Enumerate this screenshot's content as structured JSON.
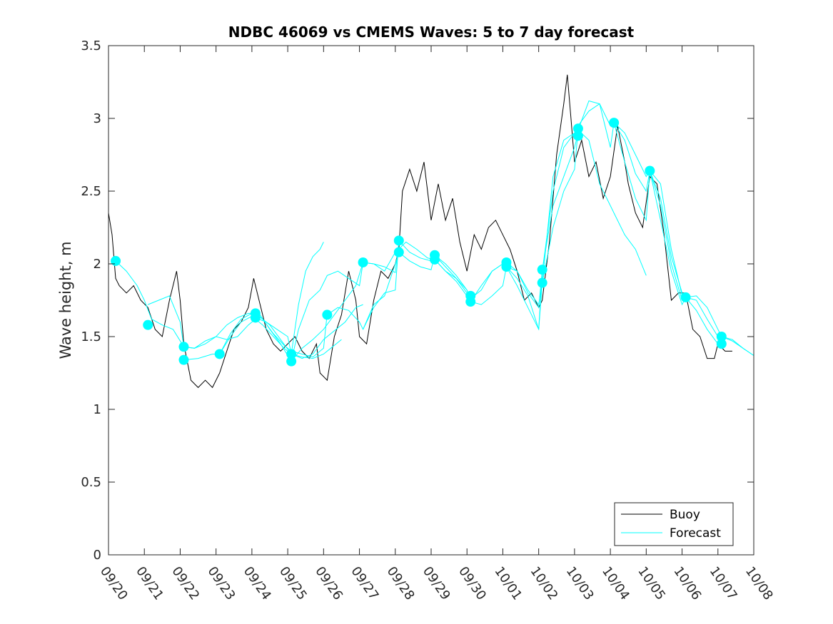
{
  "chart_data": {
    "type": "line",
    "title": "NDBC 46069 vs CMEMS Waves: 5 to 7 day forecast",
    "xlabel": "",
    "ylabel": "Wave height, m",
    "xlim": [
      0,
      18
    ],
    "ylim": [
      0,
      3.5
    ],
    "x_tick_labels": [
      "09/20",
      "09/21",
      "09/22",
      "09/23",
      "09/24",
      "09/25",
      "09/26",
      "09/27",
      "09/28",
      "09/29",
      "09/30",
      "10/01",
      "10/02",
      "10/03",
      "10/04",
      "10/05",
      "10/06",
      "10/07",
      "10/08"
    ],
    "y_ticks": [
      0,
      0.5,
      1,
      1.5,
      2,
      2.5,
      3,
      3.5
    ],
    "y_tick_labels": [
      "0",
      "0.5",
      "1",
      "1.5",
      "2",
      "2.5",
      "3",
      "3.5"
    ],
    "legend": {
      "position": "bottom-right",
      "entries": [
        "Buoy",
        "Forecast"
      ]
    },
    "colors": {
      "buoy": "#000000",
      "forecast": "#00ffff",
      "axes": "#262626"
    },
    "buoy": {
      "name": "Buoy",
      "x": [
        0,
        0.1,
        0.2,
        0.3,
        0.5,
        0.7,
        0.9,
        1.1,
        1.3,
        1.5,
        1.7,
        1.9,
        2.0,
        2.1,
        2.3,
        2.5,
        2.7,
        2.9,
        3.1,
        3.3,
        3.5,
        3.7,
        3.9,
        4.05,
        4.2,
        4.4,
        4.6,
        4.8,
        5.0,
        5.2,
        5.4,
        5.6,
        5.8,
        5.9,
        6.1,
        6.3,
        6.5,
        6.7,
        6.9,
        7.0,
        7.2,
        7.4,
        7.6,
        7.8,
        8.0,
        8.1,
        8.2,
        8.4,
        8.6,
        8.8,
        9.0,
        9.2,
        9.4,
        9.6,
        9.8,
        10.0,
        10.2,
        10.4,
        10.6,
        10.8,
        11.0,
        11.2,
        11.4,
        11.6,
        11.8,
        12.0,
        12.1,
        12.3,
        12.5,
        12.7,
        12.8,
        12.9,
        13.0,
        13.2,
        13.4,
        13.6,
        13.8,
        14.0,
        14.2,
        14.4,
        14.5,
        14.7,
        14.9,
        15.1,
        15.3,
        15.5,
        15.7,
        15.9,
        16.1,
        16.3,
        16.5,
        16.7,
        16.9,
        17.0,
        17.2,
        17.4
      ],
      "y": [
        2.35,
        2.2,
        1.9,
        1.85,
        1.8,
        1.85,
        1.75,
        1.7,
        1.55,
        1.5,
        1.75,
        1.95,
        1.75,
        1.45,
        1.2,
        1.15,
        1.2,
        1.15,
        1.25,
        1.4,
        1.55,
        1.6,
        1.7,
        1.9,
        1.75,
        1.55,
        1.45,
        1.4,
        1.45,
        1.5,
        1.4,
        1.35,
        1.45,
        1.25,
        1.2,
        1.5,
        1.65,
        1.95,
        1.75,
        1.5,
        1.45,
        1.75,
        1.95,
        1.9,
        2.0,
        2.1,
        2.5,
        2.65,
        2.5,
        2.7,
        2.3,
        2.55,
        2.3,
        2.45,
        2.15,
        1.95,
        2.2,
        2.1,
        2.25,
        2.3,
        2.2,
        2.1,
        1.95,
        1.75,
        1.8,
        1.7,
        1.75,
        2.15,
        2.75,
        3.1,
        3.3,
        3.0,
        2.7,
        2.85,
        2.6,
        2.7,
        2.45,
        2.6,
        2.95,
        2.7,
        2.55,
        2.35,
        2.25,
        2.6,
        2.55,
        2.2,
        1.75,
        1.8,
        1.8,
        1.55,
        1.5,
        1.35,
        1.35,
        1.45,
        1.4,
        1.4
      ]
    },
    "forecast_series": [
      {
        "x": [
          0.2,
          0.5,
          0.8,
          1.0,
          1.2,
          1.5,
          1.8,
          2.1,
          2.4,
          2.7,
          3.0,
          3.3,
          3.6,
          3.9,
          4.1,
          4.3,
          4.6,
          4.9,
          5.1,
          5.4,
          5.7,
          6.0,
          6.2,
          6.5
        ],
        "y": [
          2.02,
          1.95,
          1.85,
          1.75,
          1.62,
          1.58,
          1.55,
          1.43,
          1.42,
          1.45,
          1.5,
          1.48,
          1.5,
          1.58,
          1.62,
          1.58,
          1.5,
          1.42,
          1.38,
          1.36,
          1.35,
          1.38,
          1.42,
          1.48
        ]
      },
      {
        "x": [
          1.1,
          1.4,
          1.7,
          2.0,
          2.1,
          2.4,
          2.7,
          3.0,
          3.3,
          3.6,
          3.9,
          4.1,
          4.3,
          4.6,
          4.9,
          5.1,
          5.4,
          5.7,
          6.0,
          6.1
        ],
        "y": [
          1.72,
          1.75,
          1.78,
          1.6,
          1.43,
          1.42,
          1.47,
          1.5,
          1.58,
          1.63,
          1.66,
          1.66,
          1.62,
          1.52,
          1.44,
          1.4,
          1.38,
          1.36,
          1.42,
          1.66
        ]
      },
      {
        "x": [
          2.1,
          2.5,
          2.9,
          3.1,
          3.4,
          3.7,
          4.0,
          4.2,
          4.5,
          4.8,
          5.1,
          5.4,
          5.7,
          6.0,
          6.3,
          6.6,
          6.9,
          7.1
        ],
        "y": [
          1.34,
          1.35,
          1.38,
          1.38,
          1.5,
          1.6,
          1.64,
          1.64,
          1.58,
          1.48,
          1.38,
          1.35,
          1.38,
          1.48,
          1.54,
          1.6,
          1.7,
          1.72
        ]
      },
      {
        "x": [
          3.1,
          3.4,
          3.7,
          4.0,
          4.2,
          4.5,
          4.8,
          5.1,
          5.4,
          5.7,
          6.0,
          6.3,
          6.6,
          6.9,
          7.1,
          7.4,
          7.7,
          8.0,
          8.1
        ],
        "y": [
          1.38,
          1.52,
          1.62,
          1.66,
          1.66,
          1.55,
          1.45,
          1.33,
          1.42,
          1.48,
          1.55,
          1.65,
          1.75,
          1.85,
          2.01,
          2.0,
          1.98,
          1.94,
          2.15
        ]
      },
      {
        "x": [
          4.1,
          4.4,
          4.7,
          5.0,
          5.1,
          5.3,
          5.5,
          5.7,
          5.9,
          6.0
        ],
        "y": [
          1.63,
          1.6,
          1.55,
          1.5,
          1.38,
          1.72,
          1.95,
          2.05,
          2.1,
          2.15
        ]
      },
      {
        "x": [
          5.1,
          5.3,
          5.6,
          5.9,
          6.1,
          6.4,
          6.7,
          7.0,
          7.1,
          7.4,
          7.7,
          8.0,
          8.3,
          8.6,
          8.9,
          9.1,
          9.4,
          9.7,
          10.0,
          10.1
        ],
        "y": [
          1.33,
          1.55,
          1.75,
          1.82,
          1.92,
          1.95,
          1.9,
          1.85,
          2.01,
          2.0,
          1.95,
          2.08,
          2.15,
          2.1,
          2.04,
          2.03,
          1.95,
          1.9,
          1.82,
          1.74
        ]
      },
      {
        "x": [
          6.1,
          6.4,
          6.7,
          7.0,
          7.1,
          7.4,
          7.7,
          8.0,
          8.1,
          8.4,
          8.7,
          9.0,
          9.1,
          9.4,
          9.7,
          10.0,
          10.1,
          10.4,
          10.7,
          11.0,
          11.1,
          11.4,
          11.7,
          12.0,
          12.1
        ],
        "y": [
          1.65,
          1.7,
          1.68,
          1.6,
          1.55,
          1.7,
          1.8,
          1.82,
          2.16,
          2.08,
          2.04,
          2.02,
          2.03,
          1.95,
          1.88,
          1.78,
          1.74,
          1.85,
          1.95,
          2.0,
          1.98,
          1.85,
          1.7,
          1.55,
          1.87
        ]
      },
      {
        "x": [
          7.1,
          7.4,
          7.7,
          8.0,
          8.1,
          8.4,
          8.7,
          9.0,
          9.1,
          9.4,
          9.7,
          10.0,
          10.1,
          10.4,
          10.7,
          11.0,
          11.1,
          11.4,
          11.7,
          12.0,
          12.1,
          12.4,
          12.7,
          13.0,
          13.1
        ],
        "y": [
          1.55,
          1.72,
          1.78,
          2.0,
          2.08,
          2.02,
          1.98,
          1.96,
          2.06,
          1.98,
          1.9,
          1.8,
          1.76,
          1.82,
          1.95,
          2.0,
          2.01,
          1.95,
          1.8,
          1.7,
          1.96,
          2.4,
          2.6,
          2.8,
          2.9
        ]
      },
      {
        "x": [
          9.1,
          9.4,
          9.7,
          10.0,
          10.1,
          10.4,
          10.7,
          11.0,
          11.1,
          11.4,
          11.7,
          12.0,
          12.1,
          12.4,
          12.7,
          13.0,
          13.1,
          13.4,
          13.7,
          14.0,
          14.1,
          14.4,
          14.7,
          15.0
        ],
        "y": [
          2.06,
          2.0,
          1.92,
          1.82,
          1.74,
          1.72,
          1.78,
          1.85,
          1.98,
          1.95,
          1.82,
          1.72,
          1.87,
          2.25,
          2.5,
          2.65,
          2.92,
          2.85,
          2.55,
          2.4,
          2.35,
          2.2,
          2.1,
          1.92
        ]
      },
      {
        "x": [
          11.1,
          11.4,
          11.7,
          12.0,
          12.1,
          12.4,
          12.7,
          13.0,
          13.1,
          13.4,
          13.7,
          14.0,
          14.1,
          14.4,
          14.7,
          15.0,
          15.1,
          15.4,
          15.7,
          16.0,
          16.1
        ],
        "y": [
          1.98,
          1.9,
          1.78,
          1.55,
          1.95,
          2.5,
          2.8,
          2.9,
          2.95,
          3.05,
          3.1,
          2.8,
          2.97,
          2.7,
          2.45,
          2.3,
          2.64,
          2.4,
          2.0,
          1.75,
          1.77
        ]
      },
      {
        "x": [
          12.1,
          12.4,
          12.7,
          13.0,
          13.1,
          13.4,
          13.7,
          14.0,
          14.1,
          14.4,
          14.7,
          15.0,
          15.1,
          15.4,
          15.7,
          16.0,
          16.1,
          16.4,
          16.7,
          17.0,
          17.1
        ],
        "y": [
          1.87,
          2.6,
          2.85,
          2.9,
          2.92,
          3.12,
          3.1,
          2.95,
          2.97,
          2.85,
          2.62,
          2.5,
          2.64,
          2.3,
          1.95,
          1.72,
          1.77,
          1.68,
          1.55,
          1.45,
          1.45
        ]
      },
      {
        "x": [
          14.1,
          14.4,
          14.7,
          15.0,
          15.1,
          15.4,
          15.7,
          16.0,
          16.1,
          16.4,
          16.7,
          17.0,
          17.1,
          17.4,
          17.7,
          18.0
        ],
        "y": [
          2.97,
          2.9,
          2.75,
          2.6,
          2.64,
          2.45,
          2.05,
          1.8,
          1.77,
          1.75,
          1.62,
          1.5,
          1.5,
          1.48,
          1.42,
          1.37
        ]
      },
      {
        "x": [
          15.1,
          15.4,
          15.7,
          16.0,
          16.1,
          16.4,
          16.7,
          17.0,
          17.1,
          17.4,
          17.7,
          18.0
        ],
        "y": [
          2.64,
          2.55,
          2.1,
          1.78,
          1.77,
          1.78,
          1.7,
          1.55,
          1.5,
          1.47,
          1.42,
          1.37
        ]
      }
    ],
    "forecast_markers": {
      "x": [
        0.2,
        1.1,
        2.1,
        2.1,
        3.1,
        4.1,
        4.1,
        5.1,
        5.1,
        6.1,
        7.1,
        8.1,
        8.1,
        9.1,
        9.1,
        10.1,
        10.1,
        11.1,
        11.1,
        12.1,
        12.1,
        13.1,
        13.1,
        14.1,
        15.1,
        16.1,
        17.1,
        17.1
      ],
      "y": [
        2.02,
        1.58,
        1.43,
        1.34,
        1.38,
        1.66,
        1.63,
        1.38,
        1.33,
        1.65,
        2.01,
        2.16,
        2.08,
        2.06,
        2.03,
        1.78,
        1.74,
        2.01,
        1.98,
        1.96,
        1.87,
        2.93,
        2.88,
        2.97,
        2.64,
        1.77,
        1.5,
        1.45
      ]
    }
  }
}
